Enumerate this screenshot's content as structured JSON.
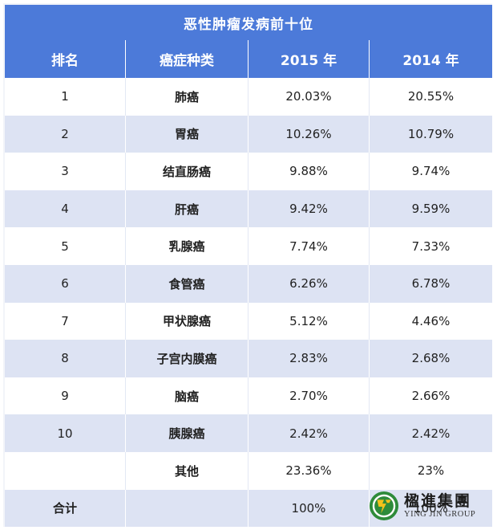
{
  "title": "恶性肿瘤发病前十位",
  "headers": [
    "排名",
    "癌症种类",
    "2015 年",
    "2014 年"
  ],
  "rows": [
    {
      "rank": "1",
      "type": "肺癌",
      "y2015": "20.03%",
      "y2014": "20.55%"
    },
    {
      "rank": "2",
      "type": "胃癌",
      "y2015": "10.26%",
      "y2014": "10.79%"
    },
    {
      "rank": "3",
      "type": "结直肠癌",
      "y2015": "9.88%",
      "y2014": "9.74%"
    },
    {
      "rank": "4",
      "type": "肝癌",
      "y2015": "9.42%",
      "y2014": "9.59%"
    },
    {
      "rank": "5",
      "type": "乳腺癌",
      "y2015": "7.74%",
      "y2014": "7.33%"
    },
    {
      "rank": "6",
      "type": "食管癌",
      "y2015": "6.26%",
      "y2014": "6.78%"
    },
    {
      "rank": "7",
      "type": "甲状腺癌",
      "y2015": "5.12%",
      "y2014": "4.46%"
    },
    {
      "rank": "8",
      "type": "子宫内膜癌",
      "y2015": "2.83%",
      "y2014": "2.68%"
    },
    {
      "rank": "9",
      "type": "脑癌",
      "y2015": "2.70%",
      "y2014": "2.66%"
    },
    {
      "rank": "10",
      "type": "胰腺癌",
      "y2015": "2.42%",
      "y2014": "2.42%"
    },
    {
      "rank": "",
      "type": "其他",
      "y2015": "23.36%",
      "y2014": "23%"
    },
    {
      "rank": "合计",
      "type": "",
      "y2015": "100%",
      "y2014": "100%"
    }
  ],
  "watermark": {
    "chinese": "楹進集團",
    "english": "YING JIN GROUP"
  },
  "colors": {
    "header_bg": "#4c7ad9",
    "stripe_bg": "#dde3f3",
    "logo_green": "#2e8b3a",
    "logo_yellow": "#f2c21b"
  }
}
